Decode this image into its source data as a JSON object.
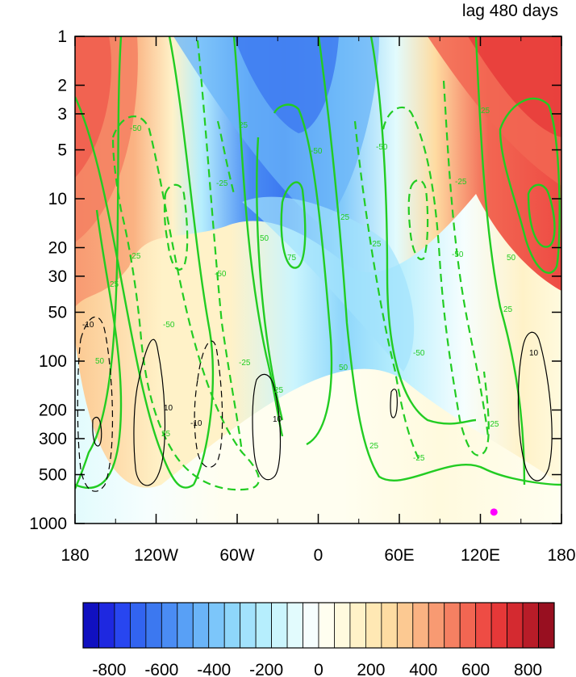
{
  "chart_data": {
    "type": "heatmap",
    "title": "lag 480 days",
    "xlim": [
      -180,
      180
    ],
    "x_ticks": [
      {
        "value": -180,
        "label": "180"
      },
      {
        "value": -120,
        "label": "120W"
      },
      {
        "value": -60,
        "label": "60W"
      },
      {
        "value": 0,
        "label": "0"
      },
      {
        "value": 60,
        "label": "60E"
      },
      {
        "value": 120,
        "label": "120E"
      },
      {
        "value": 180,
        "label": "180"
      }
    ],
    "y_scale": "log",
    "y_inverted": true,
    "ylim": [
      1,
      1000
    ],
    "y_ticks": [
      {
        "value": 1,
        "label": "1"
      },
      {
        "value": 2,
        "label": "2"
      },
      {
        "value": 3,
        "label": "3"
      },
      {
        "value": 5,
        "label": "5"
      },
      {
        "value": 10,
        "label": "10"
      },
      {
        "value": 20,
        "label": "20"
      },
      {
        "value": 30,
        "label": "30"
      },
      {
        "value": 50,
        "label": "50"
      },
      {
        "value": 100,
        "label": "100"
      },
      {
        "value": 200,
        "label": "200"
      },
      {
        "value": 300,
        "label": "300"
      },
      {
        "value": 500,
        "label": "500"
      },
      {
        "value": 1000,
        "label": "1000"
      }
    ],
    "colorbar": {
      "orientation": "horizontal",
      "range": [
        -900,
        900
      ],
      "step": 50,
      "labels": [
        {
          "value": -800,
          "label": "-800"
        },
        {
          "value": -600,
          "label": "-600"
        },
        {
          "value": -400,
          "label": "-400"
        },
        {
          "value": -200,
          "label": "-200"
        },
        {
          "value": 0,
          "label": "0"
        },
        {
          "value": 200,
          "label": "200"
        },
        {
          "value": 400,
          "label": "400"
        },
        {
          "value": 600,
          "label": "600"
        },
        {
          "value": 800,
          "label": "800"
        }
      ],
      "colors": [
        "#1010c0",
        "#1e28e0",
        "#2846f0",
        "#3264f0",
        "#3c78f0",
        "#4a8cf4",
        "#58a0f6",
        "#6ab4f8",
        "#7cc6fa",
        "#8ed6fb",
        "#a2e2fc",
        "#b6eefd",
        "#cbf5fd",
        "#e2fbfd",
        "#f6fefe",
        "#fffef0",
        "#fffade",
        "#fff2c8",
        "#ffe8b4",
        "#fedca2",
        "#fcc992",
        "#fab282",
        "#f89a72",
        "#f58062",
        "#f26652",
        "#ee4c44",
        "#e63838",
        "#d42a30",
        "#b81c28",
        "#980f20"
      ]
    },
    "filled_field": {
      "description_values": [
        {
          "lon": -150,
          "lev": 2,
          "value": 550
        },
        {
          "lon": -20,
          "lev": 1.5,
          "value": -400
        },
        {
          "lon": 150,
          "lev": 1.5,
          "value": 650
        },
        {
          "lon": -90,
          "lev": 100,
          "value": 200
        },
        {
          "lon": 60,
          "lev": 100,
          "value": -100
        },
        {
          "lon": 0,
          "lev": 800,
          "value": 30
        }
      ]
    },
    "green_contours": {
      "color": "#22cc22",
      "labels": [
        "25",
        "50",
        "75",
        "-25",
        "-50"
      ]
    },
    "black_contours": {
      "color": "#000000",
      "labels": [
        "10",
        "-10"
      ]
    },
    "marker": {
      "lon": 130,
      "lev": 850,
      "color": "#ff00ff"
    }
  }
}
